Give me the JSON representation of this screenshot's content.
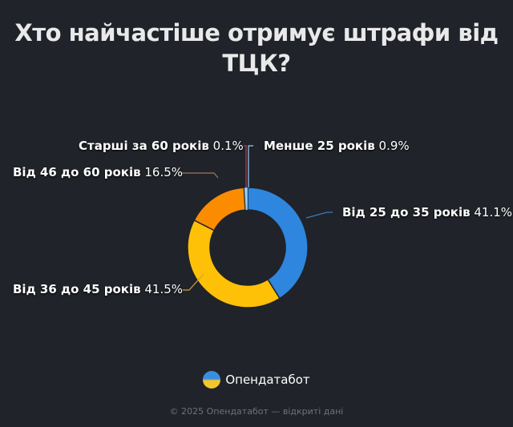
{
  "title": "Хто найчастіше отримує штрафи від ТЦК?",
  "title_lines": [
    "Хто найчастіше отримує штрафи від",
    "ТЦК?"
  ],
  "chart_data": {
    "type": "pie",
    "variant": "donut",
    "title": "Хто найчастіше отримує штрафи від ТЦК?",
    "categories": [
      "Від 25 до 35 років",
      "Від 36 до 45 років",
      "Від 46 до 60 років",
      "Старші за 60 років",
      "Менше 25 років"
    ],
    "values": [
      41.1,
      41.5,
      16.5,
      0.1,
      0.9
    ],
    "unit": "%",
    "colors": [
      "#2e86de",
      "#ffc107",
      "#fb8c00",
      "#a9405c",
      "#8fd0f5"
    ],
    "legend": "none (labels with leader lines)"
  },
  "labels": [
    {
      "name": "Старші за 60 років",
      "value": "0.1%"
    },
    {
      "name": "Менше 25 років",
      "value": "0.9%"
    },
    {
      "name": "Від 46 до 60 років",
      "value": "16.5%"
    },
    {
      "name": "Від 25 до 35 років",
      "value": "41.1%"
    },
    {
      "name": "Від 36 до 45 років",
      "value": "41.5%"
    }
  ],
  "brand": {
    "name": "Опендатабот"
  },
  "footer": "© 2025 Опендатабот — відкриті дані"
}
